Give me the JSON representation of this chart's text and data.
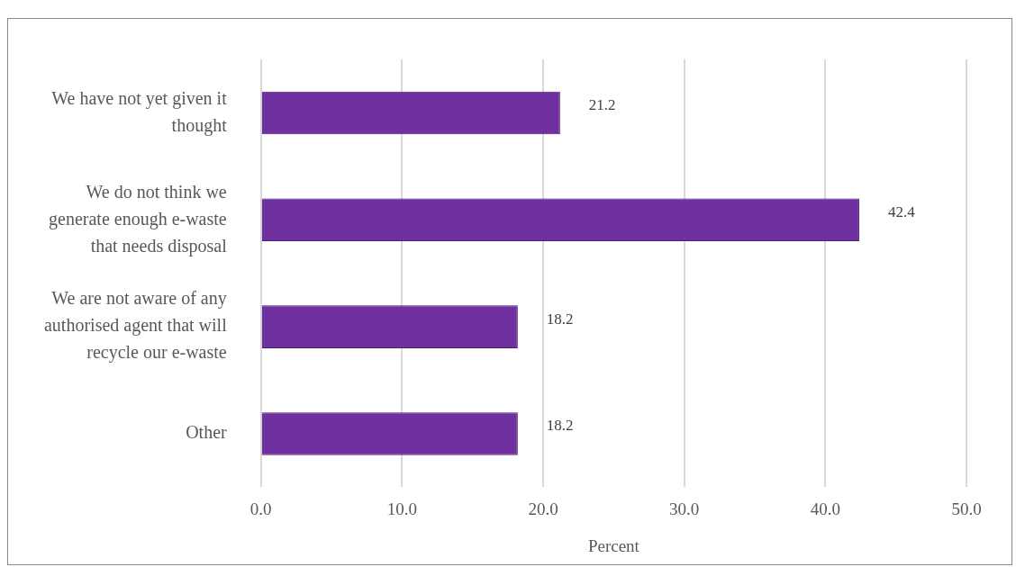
{
  "chart_data": {
    "type": "bar",
    "orientation": "horizontal",
    "xlabel": "Percent",
    "categories": [
      "We have not yet given it thought",
      "We do not think we generate enough e-waste that needs disposal",
      "We are not aware of any authorised agent that will recycle our e-waste",
      "Other"
    ],
    "values": [
      21.2,
      42.4,
      18.2,
      18.2
    ],
    "color": "#7030a0",
    "xlim": [
      0,
      50
    ],
    "xticks": [
      {
        "value": 0,
        "label": "0.0"
      },
      {
        "value": 10,
        "label": "10.0"
      },
      {
        "value": 20,
        "label": "20.0"
      },
      {
        "value": 30,
        "label": "30.0"
      },
      {
        "value": 40,
        "label": "40.0"
      },
      {
        "value": 50,
        "label": "50.0"
      }
    ],
    "grid": "x",
    "data_labels": true,
    "legend": false
  }
}
